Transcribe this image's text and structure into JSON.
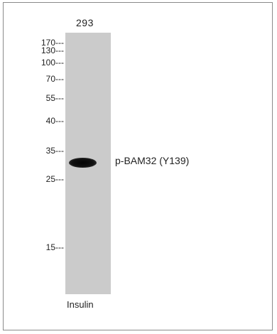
{
  "lane": {
    "label": "293",
    "treatment": "Insulin"
  },
  "band": {
    "label": "p-BAM32 (Y139)"
  },
  "markers": [
    "170---",
    "130---",
    "100---",
    "70---",
    "55---",
    "40---",
    "35---",
    "25---",
    "15---"
  ],
  "colors": {
    "background": "#ffffff",
    "lane": "#cbcbcb",
    "band": "#0a0a0a",
    "border": "#8a8a8a"
  }
}
